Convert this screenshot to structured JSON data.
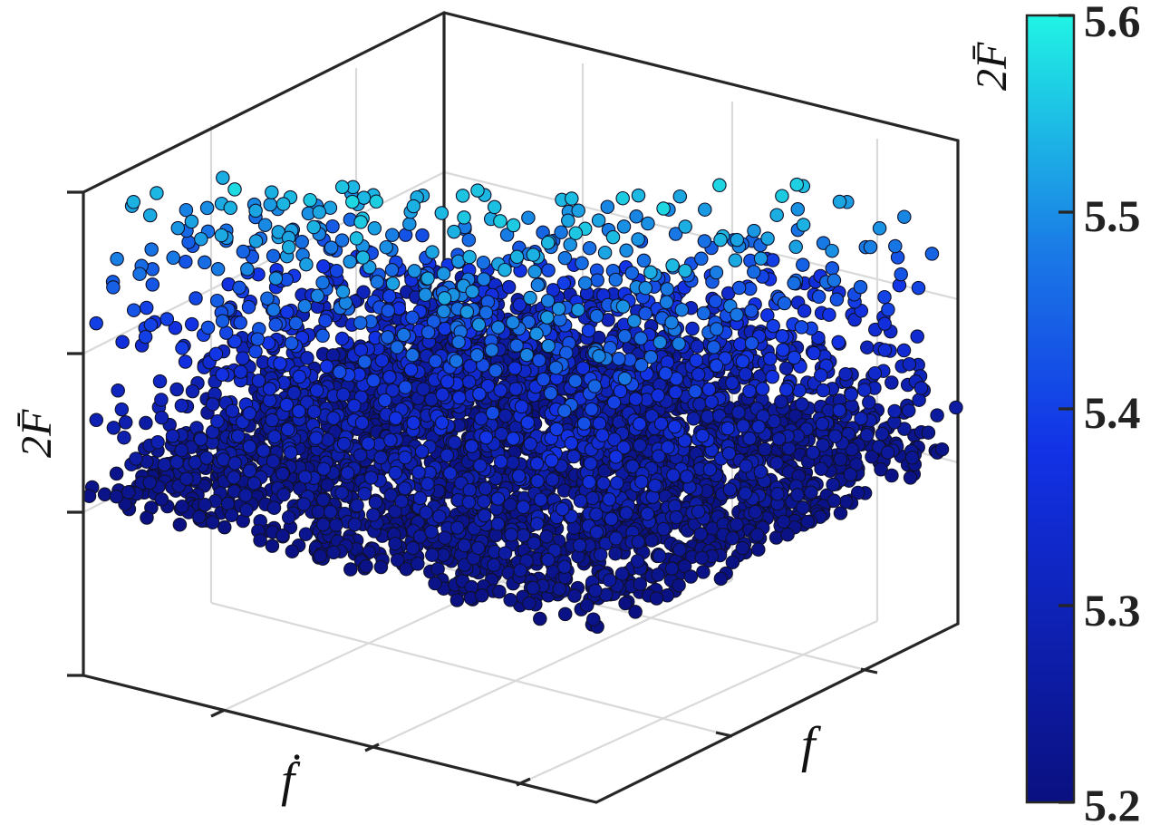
{
  "chart_data": {
    "type": "scatter",
    "title": "",
    "xlabel": "f",
    "ylabel": "ḟ",
    "zlabel": "2F̄",
    "grid": true,
    "box": true,
    "colormap": {
      "label": "2F̄",
      "min": 5.2,
      "max": 5.6,
      "ticks": [
        "5.2",
        "5.3",
        "5.4",
        "5.5",
        "5.6"
      ],
      "low_color": "#0a1080",
      "mid_color": "#1232e6",
      "high_color": "#20f0e0",
      "location": "right"
    },
    "point_count_description": "dense cloud of several thousand points over the f–ḟ plane, values mostly 5.20–5.45 with sparse highs to ~5.58",
    "zlim": [
      5.2,
      5.6
    ]
  }
}
